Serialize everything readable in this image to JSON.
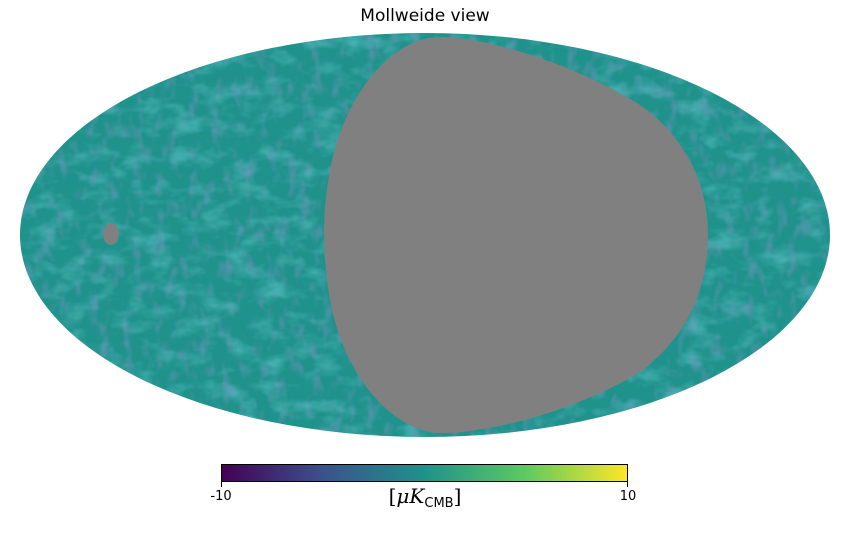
{
  "title": "Mollweide view",
  "map": {
    "projection": "mollweide",
    "base_color": "#20928c",
    "mask_color": "#808080",
    "colormap": "viridis"
  },
  "colorbar": {
    "min_label": "-10",
    "max_label": "10",
    "unit_prefix": "[",
    "unit_mu": "μ",
    "unit_k": "K",
    "unit_sub": "CMB",
    "unit_suffix": "]",
    "colors": [
      "#440154",
      "#3b528b",
      "#21918c",
      "#5ec962",
      "#fde725"
    ]
  }
}
